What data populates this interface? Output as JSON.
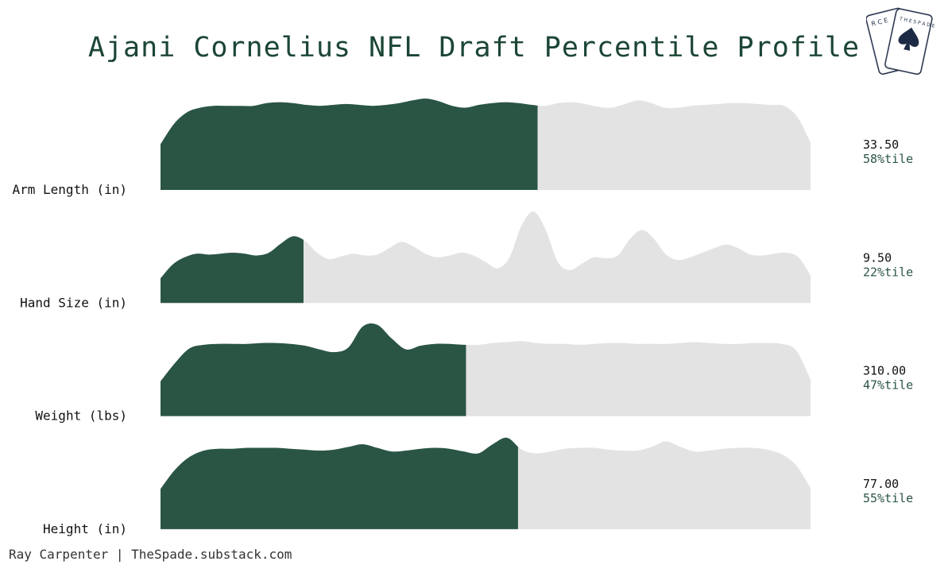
{
  "title": "Ajani Cornelius NFL Draft Percentile Profile",
  "footer": "Ray Carpenter | TheSpade.substack.com",
  "logo": {
    "icon": "spade-card-icon",
    "letters_left": "R C E",
    "letters_right": "T H E S P A D E"
  },
  "colors": {
    "fill": "#2a5545",
    "background_density": "#e3e3e3",
    "title": "#1c4635",
    "percentile_text": "#2a5545"
  },
  "chart_data": {
    "type": "area",
    "title": "Ajani Cornelius NFL Draft Percentile Profile",
    "metrics": [
      {
        "label": "Arm Length (in)",
        "value": "33.50",
        "percentile_label": "58%tile",
        "percentile": 58,
        "density": [
          0.5,
          0.72,
          0.85,
          0.9,
          0.92,
          0.92,
          0.92,
          0.92,
          0.95,
          0.96,
          0.95,
          0.93,
          0.92,
          0.93,
          0.94,
          0.93,
          0.92,
          0.93,
          0.95,
          0.98,
          1.0,
          0.97,
          0.92,
          0.9,
          0.93,
          0.95,
          0.96,
          0.95,
          0.93,
          0.92,
          0.95,
          0.96,
          0.94,
          0.91,
          0.9,
          0.94,
          0.98,
          0.95,
          0.9,
          0.9,
          0.92,
          0.93,
          0.94,
          0.95,
          0.95,
          0.94,
          0.93,
          0.92,
          0.8,
          0.52
        ]
      },
      {
        "label": "Hand Size (in)",
        "value": "9.50",
        "percentile_label": "22%tile",
        "percentile": 22,
        "density": [
          0.27,
          0.42,
          0.5,
          0.54,
          0.53,
          0.54,
          0.55,
          0.54,
          0.52,
          0.55,
          0.65,
          0.73,
          0.68,
          0.55,
          0.48,
          0.51,
          0.54,
          0.52,
          0.53,
          0.6,
          0.67,
          0.62,
          0.54,
          0.5,
          0.52,
          0.55,
          0.52,
          0.45,
          0.38,
          0.5,
          0.85,
          1.0,
          0.8,
          0.45,
          0.36,
          0.43,
          0.5,
          0.49,
          0.52,
          0.7,
          0.8,
          0.7,
          0.53,
          0.47,
          0.5,
          0.55,
          0.6,
          0.64,
          0.6,
          0.53,
          0.52,
          0.54,
          0.55,
          0.5,
          0.3
        ]
      },
      {
        "label": "Weight (lbs)",
        "value": "310.00",
        "percentile_label": "47%tile",
        "percentile": 47,
        "density": [
          0.38,
          0.58,
          0.74,
          0.78,
          0.79,
          0.79,
          0.79,
          0.8,
          0.8,
          0.79,
          0.77,
          0.73,
          0.7,
          0.75,
          0.98,
          1.0,
          0.85,
          0.73,
          0.77,
          0.79,
          0.79,
          0.78,
          0.78,
          0.8,
          0.81,
          0.82,
          0.8,
          0.79,
          0.79,
          0.78,
          0.79,
          0.8,
          0.8,
          0.79,
          0.79,
          0.79,
          0.8,
          0.81,
          0.8,
          0.79,
          0.79,
          0.8,
          0.8,
          0.79,
          0.72,
          0.4
        ]
      },
      {
        "label": "Height (in)",
        "value": "77.00",
        "percentile_label": "55%tile",
        "percentile": 55,
        "density": [
          0.44,
          0.65,
          0.79,
          0.86,
          0.88,
          0.88,
          0.89,
          0.89,
          0.89,
          0.88,
          0.87,
          0.86,
          0.87,
          0.9,
          0.93,
          0.89,
          0.85,
          0.86,
          0.88,
          0.89,
          0.88,
          0.85,
          0.83,
          0.93,
          1.0,
          0.87,
          0.83,
          0.85,
          0.88,
          0.89,
          0.89,
          0.87,
          0.86,
          0.86,
          0.9,
          0.96,
          0.9,
          0.85,
          0.86,
          0.88,
          0.89,
          0.89,
          0.87,
          0.82,
          0.7,
          0.45
        ]
      }
    ]
  }
}
